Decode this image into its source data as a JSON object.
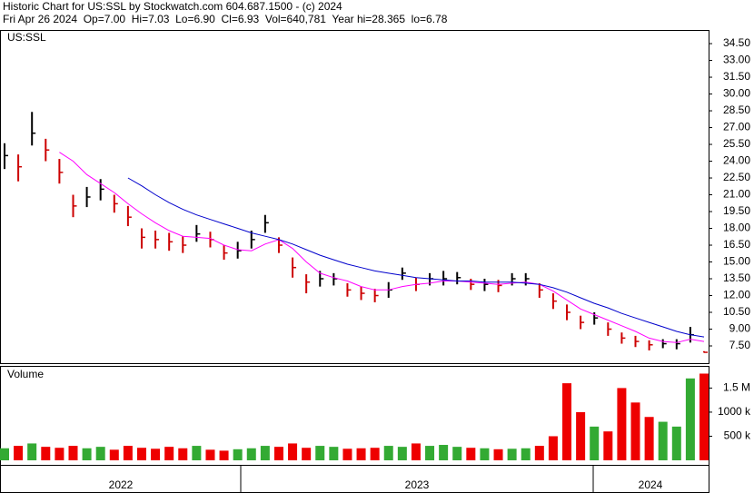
{
  "chart_data": {
    "type": "ohlc",
    "title": "Historic Chart for US:SSL by Stockwatch.com 604.687.1500 - (c) 2024",
    "subtitle": "Fri Apr 26 2024  Op=7.00  Hi=7.03  Lo=6.90  Cl=6.93  Vol=640,781  Year hi=28.365  lo=6.78",
    "symbol": "US:SSL",
    "volume_label": "Volume",
    "x_labels": [
      "2022",
      "2023",
      "2024"
    ],
    "up_color": "#000000",
    "down_color": "#cc0000",
    "high": [
      25.6,
      24.6,
      28.4,
      26,
      24.2,
      21,
      21.7,
      22.4,
      21,
      20,
      18,
      17.8,
      17.6,
      17.3,
      18.3,
      17.7,
      16.5,
      16.8,
      17.8,
      19.2,
      17.2,
      15.4,
      13.9,
      14.2,
      14,
      13.1,
      12.8,
      12.6,
      13.2,
      14.5,
      13.6,
      14,
      14.2,
      14.1,
      13.5,
      13.5,
      13.4,
      14,
      14,
      13.1,
      12.2,
      11.2,
      10.2,
      10.5,
      9.6,
      8.7,
      8.4,
      8,
      8.1,
      8.1,
      9.2,
      7.03
    ],
    "low": [
      23.3,
      22.2,
      25.4,
      24,
      22,
      19,
      19.9,
      20.5,
      19.4,
      18.2,
      16.2,
      16.2,
      16,
      15.8,
      16.8,
      16.3,
      15.2,
      15.3,
      16.2,
      17.6,
      15.8,
      13.6,
      12.2,
      12.8,
      12.9,
      11.9,
      11.6,
      11.4,
      11.8,
      13.4,
      12.4,
      12.9,
      12.9,
      13,
      12.5,
      12.4,
      12.3,
      12.9,
      12.9,
      11.8,
      10.8,
      9.8,
      9,
      9.4,
      8.4,
      7.7,
      7.4,
      7.1,
      7.3,
      7.2,
      7.8,
      6.9
    ],
    "close": [
      24.5,
      23.5,
      26.5,
      25,
      23,
      20,
      20.8,
      21.5,
      20.2,
      19,
      17.2,
      17,
      16.8,
      16.5,
      17.5,
      17,
      15.8,
      16,
      17,
      18.5,
      16.5,
      14.5,
      13.2,
      13.5,
      13.5,
      12.5,
      12.2,
      12,
      12.5,
      14,
      13,
      13.5,
      13.5,
      13.6,
      13,
      13,
      12.9,
      13.5,
      13.5,
      12.5,
      11.5,
      10.5,
      9.6,
      10,
      9,
      8.2,
      7.9,
      7.6,
      7.7,
      7.7,
      8.5,
      6.93
    ],
    "series": [
      {
        "color": "#ff00ff",
        "values": [
          null,
          null,
          null,
          null,
          24.8,
          24,
          22.8,
          22,
          21.2,
          20.2,
          19.3,
          18.5,
          17.8,
          17.3,
          17.2,
          17.1,
          16.5,
          16.1,
          16,
          16.6,
          17,
          16.2,
          15,
          14,
          13.6,
          13.3,
          12.8,
          12.5,
          12.5,
          12.8,
          13,
          13.1,
          13.3,
          13.3,
          13.2,
          13.1,
          13,
          13.1,
          13.2,
          13,
          12.4,
          11.6,
          10.8,
          10.3,
          9.8,
          9.3,
          8.8,
          8.2,
          7.9,
          7.8,
          8.1,
          7.9
        ]
      },
      {
        "color": "#0000cc",
        "values": [
          null,
          null,
          null,
          null,
          null,
          null,
          null,
          null,
          null,
          22.5,
          21.8,
          21,
          20.3,
          19.7,
          19.2,
          18.8,
          18.4,
          18,
          17.6,
          17.3,
          17,
          16.6,
          16.1,
          15.6,
          15.2,
          14.8,
          14.5,
          14.2,
          14,
          13.8,
          13.6,
          13.5,
          13.4,
          13.3,
          13.3,
          13.2,
          13.2,
          13.2,
          13.1,
          13,
          12.7,
          12.3,
          11.8,
          11.3,
          10.9,
          10.4,
          10,
          9.6,
          9.2,
          8.8,
          8.5,
          8.3
        ]
      }
    ],
    "volume": [
      250000,
      300000,
      350000,
      280000,
      260000,
      300000,
      250000,
      280000,
      220000,
      300000,
      260000,
      240000,
      280000,
      250000,
      300000,
      220000,
      200000,
      230000,
      250000,
      300000,
      280000,
      350000,
      260000,
      300000,
      280000,
      240000,
      250000,
      260000,
      300000,
      280000,
      350000,
      300000,
      320000,
      280000,
      260000,
      250000,
      230000,
      240000,
      250000,
      300000,
      500000,
      1600000,
      1000000,
      700000,
      600000,
      1500000,
      1200000,
      900000,
      800000,
      700000,
      1700000,
      1800000
    ],
    "volume_up_color": "#33aa33",
    "volume_down_color": "#ee0000",
    "ylim": [
      5.96,
      35.72
    ],
    "yticks": [
      {
        "value": 7.5,
        "label": "7.50"
      },
      {
        "value": 9,
        "label": "9.00"
      },
      {
        "value": 10.5,
        "label": "10.50"
      },
      {
        "value": 12,
        "label": "12.00"
      },
      {
        "value": 13.5,
        "label": "13.50"
      },
      {
        "value": 15,
        "label": "15.00"
      },
      {
        "value": 16.5,
        "label": "16.50"
      },
      {
        "value": 18,
        "label": "18.00"
      },
      {
        "value": 19.5,
        "label": "19.50"
      },
      {
        "value": 21,
        "label": "21.00"
      },
      {
        "value": 22.5,
        "label": "22.50"
      },
      {
        "value": 24,
        "label": "24.00"
      },
      {
        "value": 25.5,
        "label": "25.50"
      },
      {
        "value": 27,
        "label": "27.00"
      },
      {
        "value": 28.5,
        "label": "28.50"
      },
      {
        "value": 30,
        "label": "30.00"
      },
      {
        "value": 31.5,
        "label": "31.50"
      },
      {
        "value": 33,
        "label": "33.00"
      },
      {
        "value": 34.5,
        "label": "34.50"
      }
    ],
    "vlim": [
      0,
      1960000
    ],
    "vticks": [
      {
        "value": 500000,
        "label": "500 k"
      },
      {
        "value": 1000000,
        "label": "1000 k"
      },
      {
        "value": 1500000,
        "label": "1.5 M"
      }
    ]
  }
}
